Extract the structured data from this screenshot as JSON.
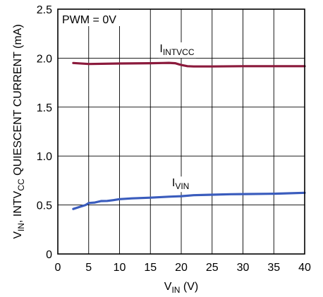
{
  "chart_data": {
    "type": "line",
    "title": "",
    "annotation": "PWM = 0V",
    "xlabel": {
      "main": "V",
      "sub": "IN",
      "suffix": " (V)"
    },
    "ylabel": {
      "p1": "V",
      "p1_sub": "IN",
      "p2": ", INTV",
      "p2_sub": "CC",
      "p3": " QUIESCENT CURRENT (mA)"
    },
    "xlim": [
      0,
      40
    ],
    "ylim": [
      0,
      2.5
    ],
    "xticks": [
      0,
      5,
      10,
      15,
      20,
      25,
      30,
      35,
      40
    ],
    "xtick_labels": [
      "0",
      "5",
      "10",
      "15",
      "20",
      "25",
      "30",
      "35",
      "40"
    ],
    "yticks": [
      0,
      0.5,
      1.0,
      1.5,
      2.0,
      2.5
    ],
    "ytick_labels": [
      "0",
      "0.5",
      "1.0",
      "1.5",
      "2.0",
      "2.5"
    ],
    "grid": true,
    "series": [
      {
        "name": "I_INTVCC",
        "label_main": "I",
        "label_sub": "INTVCC",
        "label_at": [
          16.5,
          2.06
        ],
        "color": "#8b1a3c",
        "x": [
          2.5,
          5,
          10,
          15,
          17,
          18,
          19,
          20,
          21,
          22,
          25,
          30,
          35,
          40
        ],
        "y": [
          1.95,
          1.94,
          1.945,
          1.948,
          1.95,
          1.952,
          1.948,
          1.93,
          1.918,
          1.915,
          1.915,
          1.918,
          1.918,
          1.918
        ]
      },
      {
        "name": "I_VIN",
        "label_main": "I",
        "label_sub": "VIN",
        "label_at": [
          18.5,
          0.69
        ],
        "color": "#3a5cbd",
        "x": [
          2.5,
          3.5,
          4.5,
          5,
          6,
          7,
          8,
          9,
          10,
          12,
          15,
          18,
          20,
          22,
          25,
          28,
          30,
          35,
          40
        ],
        "y": [
          0.46,
          0.48,
          0.5,
          0.52,
          0.525,
          0.54,
          0.542,
          0.55,
          0.56,
          0.568,
          0.575,
          0.585,
          0.59,
          0.6,
          0.605,
          0.61,
          0.612,
          0.615,
          0.625
        ]
      }
    ]
  }
}
